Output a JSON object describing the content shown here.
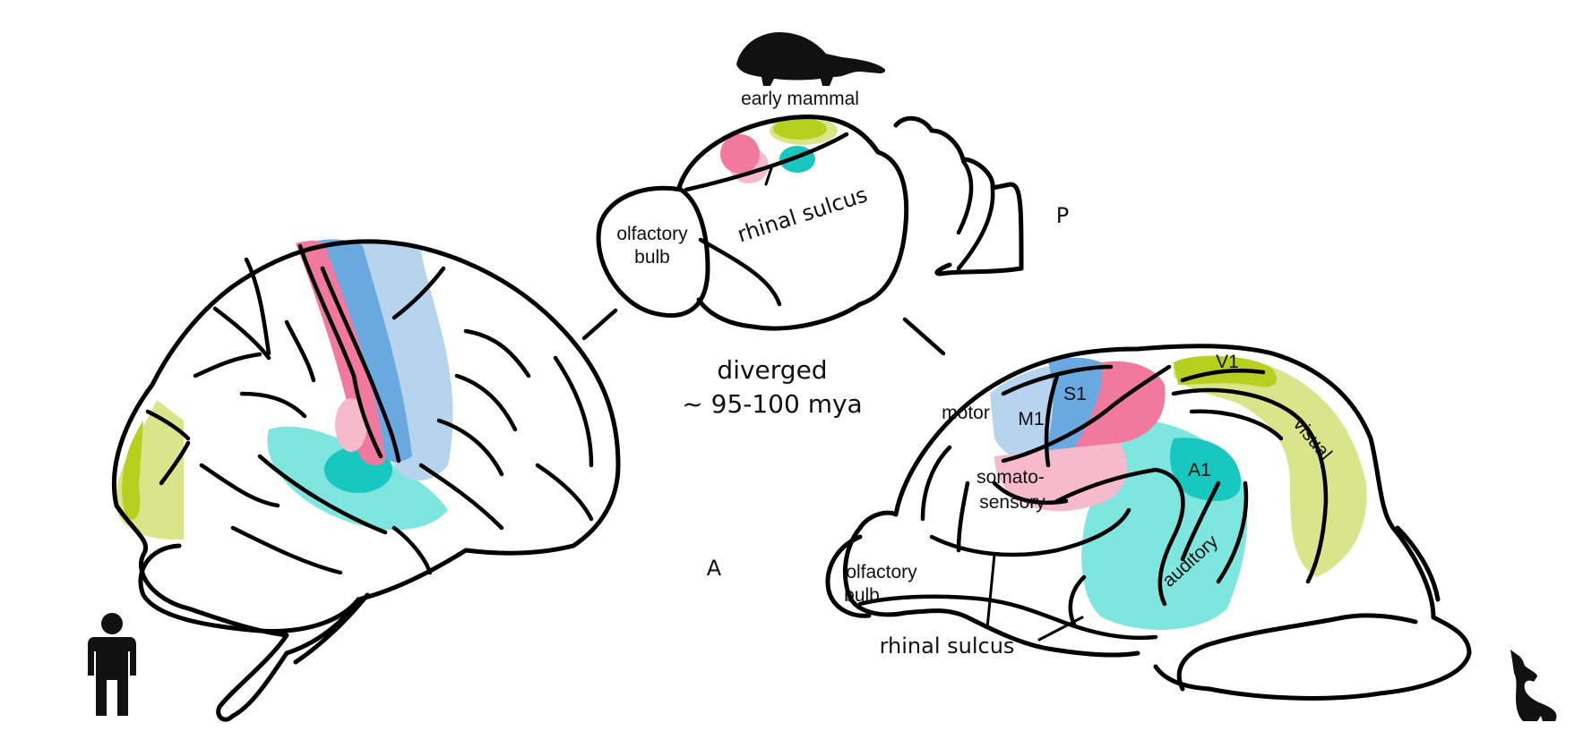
{
  "labels": {
    "early_mammal": "early mammal",
    "olfactory_bulb_top_line1": "olfactory",
    "olfactory_bulb_top_line2": "bulb",
    "rhinal_sulcus_top": "rhinal sulcus",
    "posterior": "P",
    "anterior": "A",
    "diverged_line1": "diverged",
    "diverged_line2": "~ 95-100 mya",
    "motor": "motor",
    "m1": "M1",
    "s1": "S1",
    "v1": "V1",
    "a1": "A1",
    "visual": "visual",
    "auditory": "auditory",
    "somato_line1": "somato-",
    "somato_line2": "sensory",
    "olfactory_bulb_dog_line1": "olfactory",
    "olfactory_bulb_dog_line2": "bulb",
    "rhinal_sulcus_dog": "rhinal sulcus"
  },
  "colors": {
    "motor_light": "#b7d4ef",
    "motor_primary": "#6aa8e0",
    "somato_primary": "#f2799e",
    "somato_light": "#f7b9cc",
    "auditory_light": "#7ee5df",
    "auditory_primary": "#18c7c0",
    "visual_light": "#d9e58a",
    "visual_primary": "#b7cf1e"
  },
  "icons": [
    "early-mammal-silhouette-icon",
    "human-silhouette-icon",
    "dog-silhouette-icon"
  ]
}
